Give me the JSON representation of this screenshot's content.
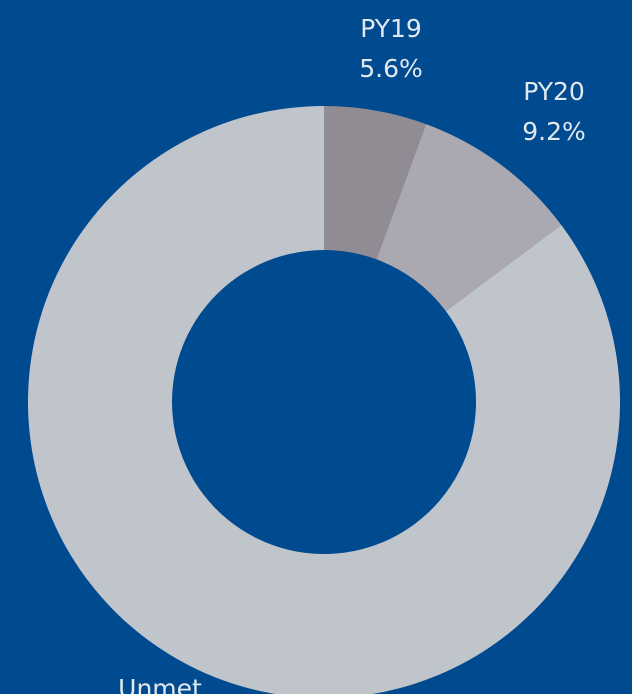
{
  "chart_data": {
    "type": "donut",
    "categories": [
      "PY19",
      "PY20",
      "Unmet"
    ],
    "values": [
      5.6,
      9.2,
      85.2
    ],
    "value_labels": [
      "5.6%",
      "9.2%",
      null
    ],
    "colors": [
      "#918b93",
      "#aaa8b1",
      "#c0c5cc"
    ],
    "background": "#004a8f"
  }
}
